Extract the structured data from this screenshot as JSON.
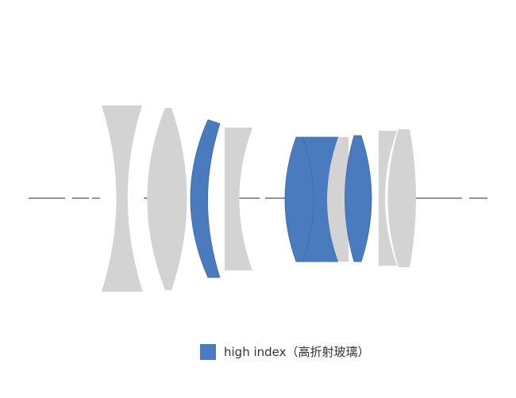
{
  "colors": {
    "background": "#ffffff",
    "standard_glass": "#d3d3d3",
    "high_index_glass": "#4a7bbf",
    "high_index_edge": "#3b6aa8",
    "optical_axis": "#555555"
  },
  "diagram": {
    "lens_elements": [
      {
        "name": "element-1-biconcave",
        "glass": "standard"
      },
      {
        "name": "element-2-biconvex",
        "glass": "standard"
      },
      {
        "name": "element-3-meniscus",
        "glass": "high_index"
      },
      {
        "name": "element-4-concave",
        "glass": "standard"
      },
      {
        "name": "element-5-biconvex",
        "glass": "high_index"
      },
      {
        "name": "element-6-concave",
        "glass": "high_index"
      },
      {
        "name": "element-7-convex",
        "glass": "standard"
      },
      {
        "name": "element-8-biconvex",
        "glass": "high_index"
      },
      {
        "name": "element-9-concave",
        "glass": "standard"
      },
      {
        "name": "element-10-convex",
        "glass": "standard"
      }
    ]
  },
  "legend": {
    "label": "high index（高折射玻璃）"
  }
}
